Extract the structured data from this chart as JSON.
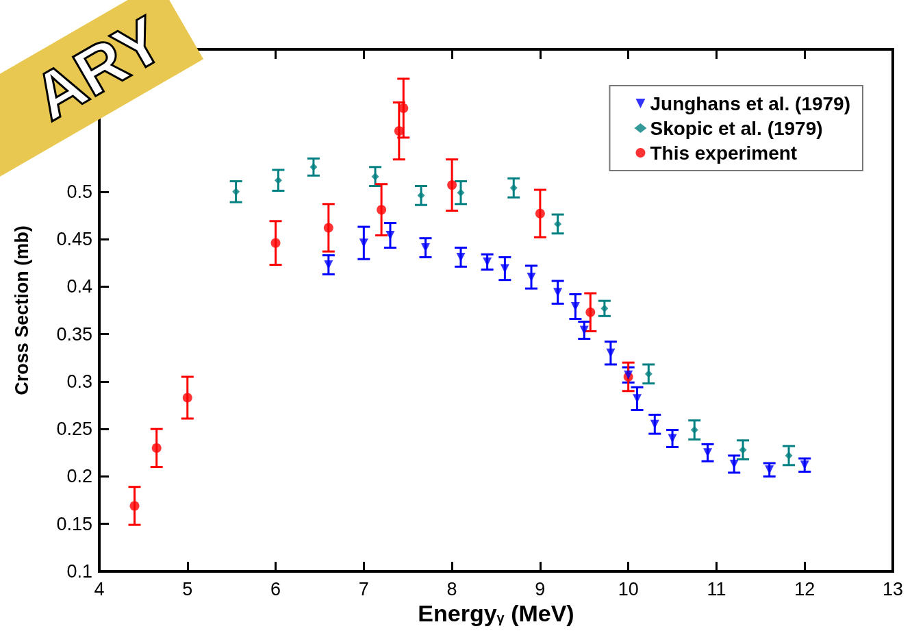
{
  "chart_data": {
    "type": "scatter",
    "xlabel": "Energy$_{γ}$ (MeV)",
    "ylabel": "Cross Section (mb)",
    "annotations": [
      "ARY"
    ],
    "xlim": [
      4,
      13
    ],
    "xticks": [
      4,
      5,
      6,
      7,
      8,
      9,
      10,
      11,
      12,
      13
    ],
    "ylim": [
      0.1,
      0.65
    ],
    "yticks": [
      0.1,
      0.15,
      0.2,
      0.25,
      0.3,
      0.35,
      0.4,
      0.45,
      0.5
    ],
    "grid": false,
    "legend": "top right",
    "series": [
      {
        "name": "Junghans et al. (1979)",
        "color": "#0000ff",
        "marker": "triangle",
        "x": [
          6.6,
          7.0,
          7.3,
          7.7,
          8.1,
          8.4,
          8.6,
          8.9,
          9.2,
          9.4,
          9.5,
          9.8,
          10.0,
          10.1,
          10.3,
          10.5,
          10.9,
          11.2,
          11.6,
          12.0
        ],
        "values": [
          0.423,
          0.446,
          0.454,
          0.441,
          0.431,
          0.426,
          0.419,
          0.41,
          0.394,
          0.379,
          0.354,
          0.33,
          0.307,
          0.282,
          0.255,
          0.24,
          0.225,
          0.213,
          0.207,
          0.212
        ],
        "errors": [
          0.01,
          0.017,
          0.013,
          0.01,
          0.01,
          0.008,
          0.012,
          0.012,
          0.012,
          0.013,
          0.009,
          0.012,
          0.008,
          0.012,
          0.01,
          0.009,
          0.009,
          0.009,
          0.007,
          0.007
        ]
      },
      {
        "name": "Skopic et al. (1979)",
        "color": "#008080",
        "marker": "diamond",
        "x": [
          5.55,
          6.03,
          6.43,
          7.13,
          7.65,
          8.1,
          8.7,
          9.2,
          9.73,
          10.23,
          10.75,
          11.3,
          11.82
        ],
        "values": [
          0.5,
          0.512,
          0.526,
          0.516,
          0.496,
          0.499,
          0.504,
          0.466,
          0.377,
          0.308,
          0.249,
          0.228,
          0.222
        ],
        "errors": [
          0.011,
          0.011,
          0.009,
          0.01,
          0.01,
          0.012,
          0.01,
          0.01,
          0.008,
          0.01,
          0.01,
          0.01,
          0.01
        ]
      },
      {
        "name": "This experiment",
        "color": "#ff0000",
        "marker": "circle",
        "x": [
          4.4,
          4.65,
          5.0,
          6.0,
          6.6,
          7.2,
          7.4,
          7.45,
          8.0,
          9.0,
          9.57,
          10.0
        ],
        "values": [
          0.169,
          0.23,
          0.283,
          0.446,
          0.462,
          0.481,
          0.564,
          0.588,
          0.507,
          0.477,
          0.373,
          0.305
        ],
        "errors": [
          0.02,
          0.02,
          0.022,
          0.023,
          0.025,
          0.027,
          0.03,
          0.031,
          0.027,
          0.025,
          0.02,
          0.015
        ]
      }
    ]
  }
}
